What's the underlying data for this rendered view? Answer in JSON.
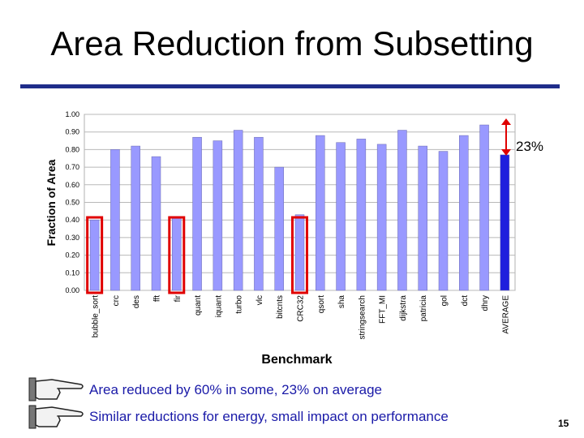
{
  "slide": {
    "title": "Area Reduction from Subsetting",
    "bullets": [
      "Area reduced by 60% in some, 23% on average",
      "Similar reductions for energy, small impact on performance"
    ],
    "page_number": "15"
  },
  "colors": {
    "bar": "#9999ff",
    "average_bar": "#1f1fdd",
    "highlight": "#e00000",
    "annotation_arrow": "#e00000",
    "title_rule": "#1f2d8a",
    "bullet_text": "#1a1aa8"
  },
  "chart_data": {
    "type": "bar",
    "xlabel": "Benchmark",
    "ylabel": "Fraction of Area",
    "ylim": [
      0,
      1.0
    ],
    "yticks": [
      "0.00",
      "0.10",
      "0.20",
      "0.30",
      "0.40",
      "0.50",
      "0.60",
      "0.70",
      "0.80",
      "0.90",
      "1.00"
    ],
    "categories": [
      "bubble_sort",
      "crc",
      "des",
      "fft",
      "fir",
      "quant",
      "iquant",
      "turbo",
      "vlc",
      "bitcnts",
      "CRC32",
      "qsort",
      "sha",
      "stringsearch",
      "FFT_MI",
      "dijkstra",
      "patricia",
      "gol",
      "dct",
      "dhry",
      "AVERAGE"
    ],
    "values": [
      0.4,
      0.8,
      0.82,
      0.76,
      0.41,
      0.87,
      0.85,
      0.91,
      0.87,
      0.7,
      0.43,
      0.88,
      0.84,
      0.86,
      0.83,
      0.91,
      0.82,
      0.79,
      0.88,
      0.94,
      0.77
    ],
    "highlighted": [
      "bubble_sort",
      "fir",
      "CRC32"
    ],
    "annotation": "23%"
  }
}
